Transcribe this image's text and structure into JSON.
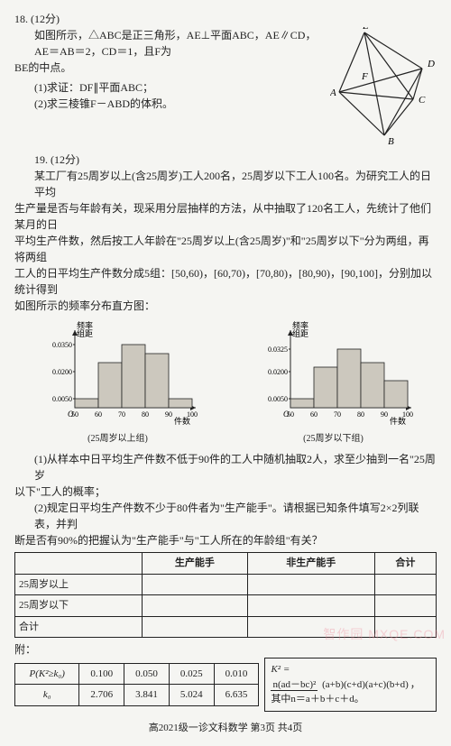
{
  "q18": {
    "number": "18.",
    "points": "(12分)",
    "stem_line1": "如图所示，△ABC是正三角形，AE⊥平面ABC，AE∥CD，AE＝AB＝2，CD＝1，且F为",
    "stem_line2": "BE的中点。",
    "sub1": "(1)求证：DF∥平面ABC；",
    "sub2": "(2)求三棱锥F－ABD的体积。",
    "figure": {
      "labels": [
        "A",
        "B",
        "C",
        "D",
        "E",
        "F"
      ],
      "points": {
        "A": [
          10,
          72
        ],
        "B": [
          60,
          120
        ],
        "C": [
          92,
          80
        ],
        "E": [
          38,
          6
        ],
        "D": [
          102,
          46
        ],
        "F": [
          45,
          60
        ]
      },
      "edges": [
        [
          "A",
          "B"
        ],
        [
          "B",
          "C"
        ],
        [
          "C",
          "A"
        ],
        [
          "A",
          "E"
        ],
        [
          "C",
          "D"
        ],
        [
          "E",
          "D"
        ],
        [
          "B",
          "D"
        ],
        [
          "B",
          "E"
        ],
        [
          "E",
          "C"
        ],
        [
          "A",
          "D"
        ]
      ],
      "line_color": "#222",
      "line_width": 1.2
    }
  },
  "q19": {
    "number": "19.",
    "points": "(12分)",
    "stem1": "某工厂有25周岁以上(含25周岁)工人200名，25周岁以下工人100名。为研究工人的日平均",
    "stem2": "生产量是否与年龄有关，现采用分层抽样的方法，从中抽取了120名工人，先统计了他们某月的日",
    "stem3": "平均生产件数，然后按工人年龄在\"25周岁以上(含25周岁)\"和\"25周岁以下\"分为两组，再将两组",
    "stem4": "工人的日平均生产件数分成5组：[50,60)，[60,70)，[70,80)，[80,90)，[90,100]，分别加以统计得到",
    "stem5": "如图所示的频率分布直方图：",
    "chart_left": {
      "caption": "(25周岁以上组)",
      "ylabel": "频率\n组距",
      "xlabel": "件数",
      "xlim": [
        50,
        100
      ],
      "ylim": [
        0,
        0.04
      ],
      "yticks": [
        0.005,
        0.02,
        0.035
      ],
      "xticks": [
        50,
        60,
        70,
        80,
        90,
        100
      ],
      "bar_color": "#ccc8be",
      "line_color": "#222",
      "bg": "#f5f5f2",
      "bars": [
        {
          "x": 50,
          "h": 0.005
        },
        {
          "x": 60,
          "h": 0.025
        },
        {
          "x": 70,
          "h": 0.035
        },
        {
          "x": 80,
          "h": 0.03
        },
        {
          "x": 90,
          "h": 0.005
        }
      ]
    },
    "chart_right": {
      "caption": "(25周岁以下组)",
      "ylabel": "频率\n组距",
      "xlabel": "件数",
      "xlim": [
        50,
        100
      ],
      "ylim": [
        0,
        0.04
      ],
      "yticks": [
        0.005,
        0.02,
        0.0325
      ],
      "xticks": [
        50,
        60,
        70,
        80,
        90,
        100
      ],
      "bar_color": "#ccc8be",
      "line_color": "#222",
      "bg": "#f5f5f2",
      "bars": [
        {
          "x": 50,
          "h": 0.005
        },
        {
          "x": 60,
          "h": 0.0225
        },
        {
          "x": 70,
          "h": 0.0325
        },
        {
          "x": 80,
          "h": 0.025
        },
        {
          "x": 90,
          "h": 0.015
        }
      ]
    },
    "sub1_l1": "(1)从样本中日平均生产件数不低于90件的工人中随机抽取2人，求至少抽到一名\"25周岁",
    "sub1_l2": "以下\"工人的概率；",
    "sub2_l1": "(2)规定日平均生产件数不少于80件者为\"生产能手\"。请根据已知条件填写2×2列联表，并判",
    "sub2_l2": "断是否有90%的把握认为\"生产能手\"与\"工人所在的年龄组\"有关？",
    "table1": {
      "headers": [
        "",
        "生产能手",
        "非生产能手",
        "合计"
      ],
      "rows": [
        [
          "25周岁以上",
          "",
          "",
          ""
        ],
        [
          "25周岁以下",
          "",
          "",
          ""
        ],
        [
          "合计",
          "",
          "",
          ""
        ]
      ]
    },
    "appendix_label": "附：",
    "table2": {
      "row1": [
        "P(K²≥k₀)",
        "0.100",
        "0.050",
        "0.025",
        "0.010"
      ],
      "row2": [
        "k₀",
        "2.706",
        "3.841",
        "5.024",
        "6.635"
      ]
    },
    "k2_formula": {
      "lhs": "K² =",
      "num": "n(ad－bc)²",
      "den": "(a+b)(c+d)(a+c)(b+d)",
      "note": "其中n＝a＋b＋c＋d。"
    }
  },
  "footer": "高2021级一诊文科数学  第3页  共4页",
  "watermark": "智作园  MXQE.COM",
  "colors": {
    "text": "#222",
    "bg": "#f5f5f2",
    "bar": "#ccc8be"
  }
}
